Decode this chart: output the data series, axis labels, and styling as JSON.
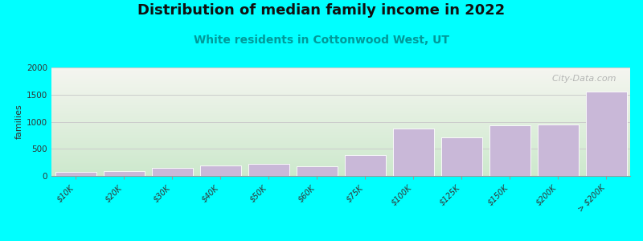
{
  "title": "Distribution of median family income in 2022",
  "subtitle": "White residents in Cottonwood West, UT",
  "ylabel": "families",
  "categories": [
    "$10K",
    "$20K",
    "$30K",
    "$40K",
    "$50K",
    "$60K",
    "$75K",
    "$100K",
    "$125K",
    "$150K",
    "$200K",
    "> $200K"
  ],
  "values": [
    75,
    95,
    150,
    190,
    220,
    175,
    390,
    870,
    710,
    930,
    950,
    1560
  ],
  "bar_color": "#c9b8d8",
  "background_color": "#00ffff",
  "plot_bg_top_color": "#f0f0e8",
  "plot_bg_bottom_left_color": "#cce8cc",
  "ylim": [
    0,
    2000
  ],
  "yticks": [
    0,
    500,
    1000,
    1500,
    2000
  ],
  "title_fontsize": 13,
  "subtitle_fontsize": 10,
  "subtitle_color": "#009999",
  "watermark": "  City-Data.com",
  "grid_color": "#cccccc"
}
